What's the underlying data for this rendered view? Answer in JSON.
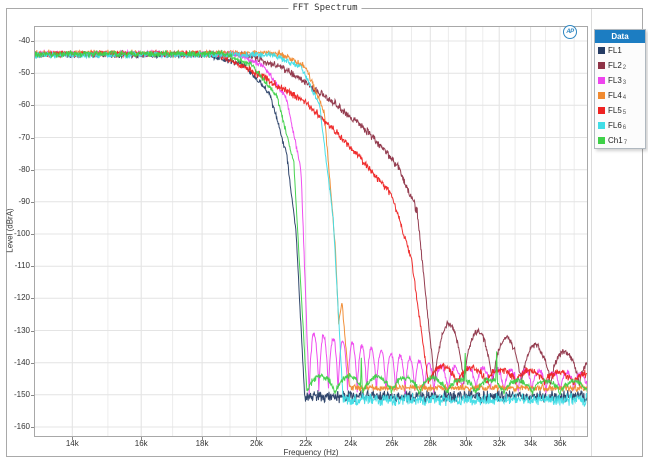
{
  "window": {
    "title": "FFT Spectrum"
  },
  "logo": {
    "text": "AP"
  },
  "legend": {
    "header": "Data",
    "header_bg": "#1c7dc2",
    "position": "right-top",
    "items": [
      {
        "label": "FL1",
        "sub": "",
        "color": "#253c64"
      },
      {
        "label": "FL2",
        "sub": "2",
        "color": "#8e3347"
      },
      {
        "label": "FL3",
        "sub": "3",
        "color": "#ee44ee"
      },
      {
        "label": "FL4",
        "sub": "4",
        "color": "#f08a30"
      },
      {
        "label": "FL5",
        "sub": "5",
        "color": "#ee2222"
      },
      {
        "label": "FL6",
        "sub": "6",
        "color": "#40dde6"
      },
      {
        "label": "Ch1",
        "sub": "7",
        "color": "#3ed148"
      }
    ]
  },
  "chart_data": {
    "type": "line",
    "title": "FFT Spectrum",
    "xlabel": "Frequency (Hz)",
    "ylabel": "Level (dBrA)",
    "x_scale": "log",
    "grid": true,
    "x_range_hz": [
      13000,
      38000
    ],
    "y_range_db": [
      -163,
      -36
    ],
    "y_ticks": [
      -40,
      -50,
      -60,
      -70,
      -80,
      -90,
      -100,
      -110,
      -120,
      -130,
      -140,
      -150,
      -160
    ],
    "x_ticks_hz": [
      14000,
      16000,
      18000,
      20000,
      22000,
      24000,
      26000,
      28000,
      30000,
      32000,
      34000,
      36000
    ],
    "x_tick_labels": [
      "14k",
      "16k",
      "18k",
      "20k",
      "22k",
      "24k",
      "26k",
      "28k",
      "30k",
      "32k",
      "34k",
      "36k"
    ],
    "x_minor_ticks_hz": [
      15000,
      17000,
      19000,
      21000,
      23000,
      25000,
      27000,
      29000,
      31000,
      33000,
      35000,
      37000
    ],
    "description": "Seven low-pass anti-alias filter responses, flat passband near -44 dBrA, steep roll-offs between 20 kHz and 28.5 kHz, noise floors near -145 to -152 dBrA with sinc-like stopband lobes",
    "series": [
      {
        "name": "FL1",
        "color": "#253c64",
        "seed": 11,
        "passband_db": -44.2,
        "cutoff_hz": 21900,
        "floor_db": -150.5,
        "segments": [
          [
            "flat",
            13000,
            18200,
            -44.2,
            1.15
          ],
          [
            "ramp",
            18200,
            19500,
            -44.2,
            -47.5,
            1.15
          ],
          [
            "ramp",
            19500,
            20500,
            -47.5,
            -56,
            1.1
          ],
          [
            "ramp",
            20500,
            21200,
            -56,
            -75,
            1.1
          ],
          [
            "ramp",
            21200,
            21600,
            -75,
            -100,
            1.0
          ],
          [
            "ramp",
            21600,
            21950,
            -100,
            -150.5,
            1.0
          ],
          [
            "flat",
            21950,
            38000,
            -150.5,
            2.2
          ]
        ]
      },
      {
        "name": "FL2",
        "color": "#8e3347",
        "seed": 22,
        "passband_db": -44.1,
        "cutoff_hz": 28250,
        "floor_db": -138,
        "segments": [
          [
            "flat",
            13000,
            19500,
            -44.1,
            1.2
          ],
          [
            "ramp",
            19500,
            21000,
            -44.1,
            -48,
            1.3
          ],
          [
            "ramp",
            21000,
            23000,
            -48,
            -58,
            1.5
          ],
          [
            "ramp",
            23000,
            24800,
            -58,
            -68,
            1.5
          ],
          [
            "ramp",
            24800,
            26300,
            -68,
            -79,
            1.5
          ],
          [
            "ramp",
            26300,
            27300,
            -79,
            -93,
            1.4
          ],
          [
            "ramp",
            27300,
            28250,
            -93,
            -147,
            1.2
          ],
          [
            "lobes",
            28250,
            38000,
            -127,
            -138.5,
            -147,
            5.3,
            1.2
          ]
        ]
      },
      {
        "name": "FL3",
        "color": "#ee44ee",
        "seed": 33,
        "passband_db": -44,
        "cutoff_hz": 22150,
        "floor_db": -140,
        "segments": [
          [
            "flat",
            13000,
            19300,
            -44,
            1.15
          ],
          [
            "ramp",
            19300,
            20300,
            -44,
            -48,
            1.15
          ],
          [
            "ramp",
            20300,
            21200,
            -48,
            -58,
            1.1
          ],
          [
            "ramp",
            21200,
            21800,
            -58,
            -80,
            1.0
          ],
          [
            "ramp",
            21800,
            22150,
            -80,
            -150,
            1.0
          ],
          [
            "lobes",
            22150,
            28200,
            -130.5,
            -140.5,
            -150,
            13,
            1.0
          ],
          [
            "lobes",
            28200,
            38000,
            -141,
            -143.5,
            -149,
            11,
            1.2
          ]
        ]
      },
      {
        "name": "FL4",
        "color": "#f08a30",
        "seed": 44,
        "passband_db": -43.8,
        "cutoff_hz": 23950,
        "floor_db": -147.8,
        "segments": [
          [
            "flat",
            13000,
            20900,
            -43.8,
            1.15
          ],
          [
            "ramp",
            20900,
            22000,
            -43.8,
            -48,
            1.15
          ],
          [
            "ramp",
            22000,
            22800,
            -48,
            -62,
            1.1
          ],
          [
            "ramp",
            22800,
            23300,
            -62,
            -104,
            1.0
          ],
          [
            "ramp",
            23300,
            23450,
            -104,
            -128,
            0.9
          ],
          [
            "ramp",
            23450,
            23600,
            -128,
            -121,
            0.9
          ],
          [
            "ramp",
            23600,
            23950,
            -121,
            -148,
            0.9
          ],
          [
            "flat",
            23950,
            38000,
            -147.8,
            1.25
          ]
        ]
      },
      {
        "name": "FL5",
        "color": "#ee2222",
        "seed": 55,
        "passband_db": -44,
        "cutoff_hz": 27900,
        "floor_db": -144,
        "segments": [
          [
            "flat",
            13000,
            18500,
            -44,
            1.15
          ],
          [
            "ramp",
            18500,
            20000,
            -44,
            -50,
            1.2
          ],
          [
            "ramp",
            20000,
            22000,
            -50,
            -59,
            1.4
          ],
          [
            "ramp",
            22000,
            24000,
            -59,
            -73,
            1.4
          ],
          [
            "ramp",
            24000,
            26000,
            -73,
            -88,
            1.4
          ],
          [
            "ramp",
            26000,
            27000,
            -88,
            -108,
            1.3
          ],
          [
            "ramp",
            27000,
            27900,
            -108,
            -146.5,
            1.1
          ],
          [
            "lobes",
            27900,
            38000,
            -141,
            -143.5,
            -146.5,
            5.5,
            1.5
          ]
        ]
      },
      {
        "name": "FL6",
        "color": "#40dde6",
        "seed": 66,
        "passband_db": -44.3,
        "cutoff_hz": 23650,
        "floor_db": -151.5,
        "segments": [
          [
            "flat",
            13000,
            20600,
            -44.3,
            1.15
          ],
          [
            "ramp",
            20600,
            21800,
            -44.3,
            -48,
            1.15
          ],
          [
            "ramp",
            21800,
            22600,
            -48,
            -60,
            1.1
          ],
          [
            "ramp",
            22600,
            23200,
            -60,
            -95,
            1.0
          ],
          [
            "ramp",
            23200,
            23650,
            -95,
            -151.5,
            1.0
          ],
          [
            "flat",
            23650,
            38000,
            -151.5,
            2.2
          ]
        ]
      },
      {
        "name": "Ch1",
        "color": "#3ed148",
        "seed": 77,
        "passband_db": -44,
        "cutoff_hz": 22050,
        "floor_db": -147,
        "segments": [
          [
            "flat",
            13000,
            18800,
            -44,
            1.15
          ],
          [
            "ramp",
            18800,
            19800,
            -44,
            -47.5,
            1.15
          ],
          [
            "ramp",
            19800,
            20800,
            -47.5,
            -57,
            1.1
          ],
          [
            "ramp",
            20800,
            21500,
            -57,
            -78,
            1.0
          ],
          [
            "ramp",
            21500,
            22050,
            -78,
            -149.5,
            1.0
          ],
          [
            "lobes",
            22050,
            38000,
            -144,
            -146,
            -149.5,
            10,
            1.2
          ]
        ],
        "spikes": [
          [
            24500,
            -138.5
          ],
          [
            29950,
            -137
          ],
          [
            31850,
            -136.5
          ]
        ]
      }
    ]
  }
}
